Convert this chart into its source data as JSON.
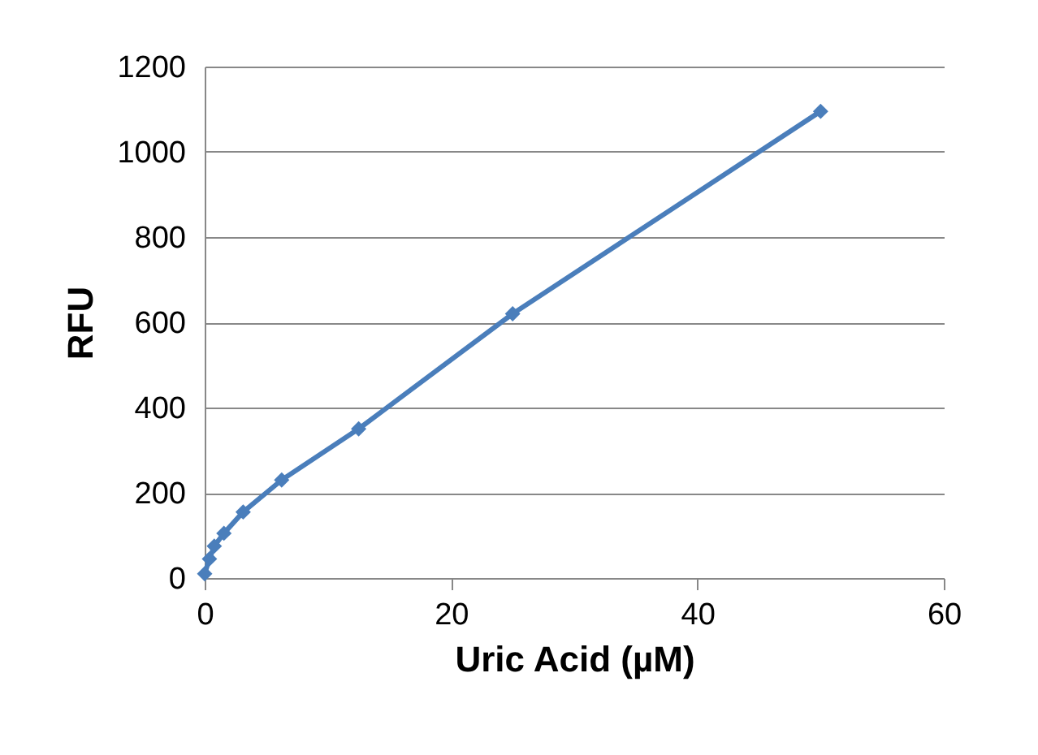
{
  "chart_data": {
    "type": "line",
    "xlabel": "Uric Acid (µM)",
    "ylabel": "RFU",
    "x": [
      0,
      0.39,
      0.78,
      1.5625,
      3.125,
      6.25,
      12.5,
      25,
      50
    ],
    "series": [
      {
        "color": "#4a7ebb",
        "values": [
          10,
          45,
          75,
          105,
          155,
          230,
          350,
          620,
          1095
        ]
      }
    ],
    "xlim": [
      0,
      60
    ],
    "xticks": [
      0,
      20,
      40,
      60
    ],
    "ylim": [
      0,
      1200
    ],
    "yticks": [
      0,
      200,
      400,
      600,
      800,
      1000,
      1200
    ],
    "grid": "y",
    "legend": false,
    "marker": "diamond",
    "line_style": "solid"
  }
}
